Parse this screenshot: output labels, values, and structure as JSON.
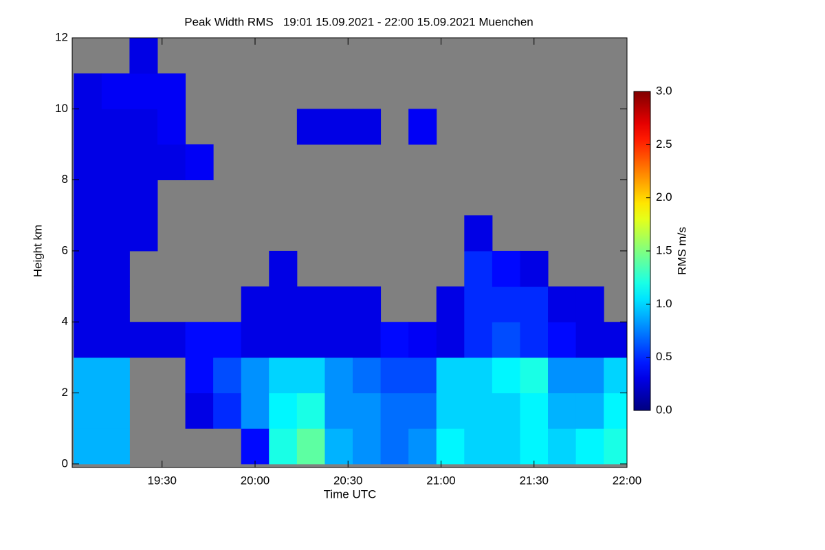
{
  "chart_data": {
    "type": "heatmap",
    "title": "Peak Width RMS   19:01 15.09.2021 - 22:00 15.09.2021 Muenchen",
    "x_label": "Time UTC",
    "y_label": "Height km",
    "colorbar_label": "RMS m/s",
    "x": [
      19.1,
      19.25,
      19.4,
      19.55,
      19.7,
      19.85,
      20.0,
      20.15,
      20.3,
      20.45,
      20.6,
      20.75,
      20.9,
      21.05,
      21.2,
      21.35,
      21.5,
      21.65,
      21.8,
      21.95
    ],
    "y": [
      0.5,
      1.5,
      2.5,
      3.5,
      4.5,
      5.5,
      6.5,
      7.5,
      8.5,
      9.5,
      10.5,
      11.5
    ],
    "z": [
      [
        0.9,
        0.9,
        null,
        null,
        null,
        null,
        0.4,
        1.2,
        1.4,
        0.9,
        0.8,
        0.7,
        0.8,
        1.1,
        1.0,
        1.0,
        1.1,
        1.0,
        1.1,
        1.2
      ],
      [
        0.9,
        0.9,
        null,
        null,
        0.3,
        0.5,
        0.8,
        1.1,
        1.2,
        0.8,
        0.8,
        0.7,
        0.7,
        1.0,
        1.0,
        1.0,
        1.1,
        0.9,
        0.9,
        1.1
      ],
      [
        0.9,
        0.9,
        null,
        null,
        0.4,
        0.6,
        0.8,
        1.0,
        1.0,
        0.8,
        0.7,
        0.6,
        0.6,
        1.0,
        1.0,
        1.1,
        1.2,
        0.8,
        0.8,
        1.0
      ],
      [
        0.3,
        0.3,
        0.3,
        0.3,
        0.4,
        0.4,
        0.3,
        0.3,
        0.3,
        0.3,
        0.3,
        0.4,
        0.35,
        0.3,
        0.5,
        0.6,
        0.5,
        0.4,
        0.3,
        0.3
      ],
      [
        0.3,
        0.3,
        null,
        null,
        null,
        null,
        0.3,
        0.3,
        0.3,
        0.3,
        0.3,
        null,
        null,
        0.3,
        0.5,
        0.5,
        0.5,
        0.3,
        0.3,
        null
      ],
      [
        0.3,
        0.3,
        null,
        null,
        null,
        null,
        null,
        0.3,
        null,
        null,
        null,
        null,
        null,
        null,
        0.5,
        0.4,
        0.3,
        null,
        null,
        null
      ],
      [
        0.3,
        0.3,
        0.3,
        null,
        null,
        null,
        null,
        null,
        null,
        null,
        null,
        null,
        null,
        null,
        0.3,
        null,
        null,
        null,
        null,
        null
      ],
      [
        0.3,
        0.3,
        0.3,
        null,
        null,
        null,
        null,
        null,
        null,
        null,
        null,
        null,
        null,
        null,
        null,
        null,
        null,
        null,
        null,
        null
      ],
      [
        0.3,
        0.3,
        0.3,
        0.3,
        0.35,
        null,
        null,
        null,
        null,
        null,
        null,
        null,
        null,
        null,
        null,
        null,
        null,
        null,
        null,
        null
      ],
      [
        0.3,
        0.3,
        0.3,
        0.35,
        null,
        null,
        null,
        null,
        0.3,
        0.3,
        0.3,
        null,
        0.35,
        null,
        null,
        null,
        null,
        null,
        null,
        null
      ],
      [
        0.3,
        0.35,
        0.35,
        0.35,
        null,
        null,
        null,
        null,
        null,
        null,
        null,
        null,
        null,
        null,
        null,
        null,
        null,
        null,
        null,
        null
      ],
      [
        null,
        null,
        0.3,
        null,
        null,
        null,
        null,
        null,
        null,
        null,
        null,
        null,
        null,
        null,
        null,
        null,
        null,
        null,
        null,
        null
      ]
    ],
    "xlim": [
      19.0167,
      22.0
    ],
    "xticks": [
      {
        "value": 19.5,
        "label": "19:30"
      },
      {
        "value": 20.0,
        "label": "20:00"
      },
      {
        "value": 20.5,
        "label": "20:30"
      },
      {
        "value": 21.0,
        "label": "21:00"
      },
      {
        "value": 21.5,
        "label": "21:30"
      },
      {
        "value": 22.0,
        "label": "22:00"
      }
    ],
    "ylim": [
      -0.1,
      12
    ],
    "yticks": [
      0,
      2,
      4,
      6,
      8,
      10,
      12
    ],
    "zlim": [
      0,
      3
    ],
    "zticks": [
      {
        "value": 0,
        "label": "0.0"
      },
      {
        "value": 0.5,
        "label": "0.5"
      },
      {
        "value": 1.0,
        "label": "1.0"
      },
      {
        "value": 1.5,
        "label": "1.5"
      },
      {
        "value": 2.0,
        "label": "2.0"
      },
      {
        "value": 2.5,
        "label": "2.5"
      },
      {
        "value": 3.0,
        "label": "3.0"
      }
    ],
    "colormap": "jet",
    "nodata_color": "#808080"
  }
}
